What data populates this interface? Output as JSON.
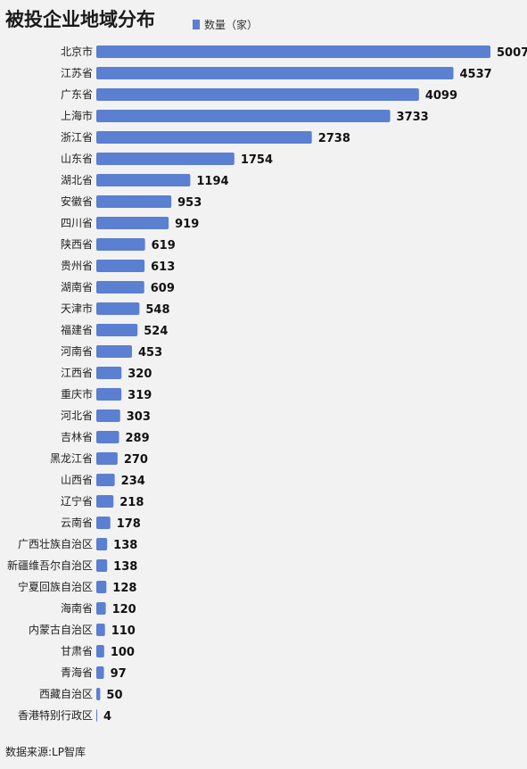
{
  "title": "被投企业地域分布",
  "source": "数据来源:LP智库",
  "colors": {
    "bar": "#5b7fd1",
    "background": "#f2f2f2",
    "text": "#1a1a1a"
  },
  "chart_data": {
    "type": "bar",
    "orientation": "horizontal",
    "title": "被投企业地域分布",
    "legend": {
      "position": "top",
      "entries": [
        "数量（家）"
      ]
    },
    "grid": false,
    "xlim": [
      0,
      5007
    ],
    "series": [
      {
        "name": "数量（家）",
        "values": [
          5007,
          4537,
          4099,
          3733,
          2738,
          1754,
          1194,
          953,
          919,
          619,
          613,
          609,
          548,
          524,
          453,
          320,
          319,
          303,
          289,
          270,
          234,
          218,
          178,
          138,
          138,
          128,
          120,
          110,
          100,
          97,
          50,
          4
        ]
      }
    ],
    "categories": [
      "北京市",
      "江苏省",
      "广东省",
      "上海市",
      "浙江省",
      "山东省",
      "湖北省",
      "安徽省",
      "四川省",
      "陕西省",
      "贵州省",
      "湖南省",
      "天津市",
      "福建省",
      "河南省",
      "江西省",
      "重庆市",
      "河北省",
      "吉林省",
      "黑龙江省",
      "山西省",
      "辽宁省",
      "云南省",
      "广西壮族自治区",
      "新疆维吾尔自治区",
      "宁夏回族自治区",
      "海南省",
      "内蒙古自治区",
      "甘肃省",
      "青海省",
      "西藏自治区",
      "香港特别行政区"
    ]
  }
}
